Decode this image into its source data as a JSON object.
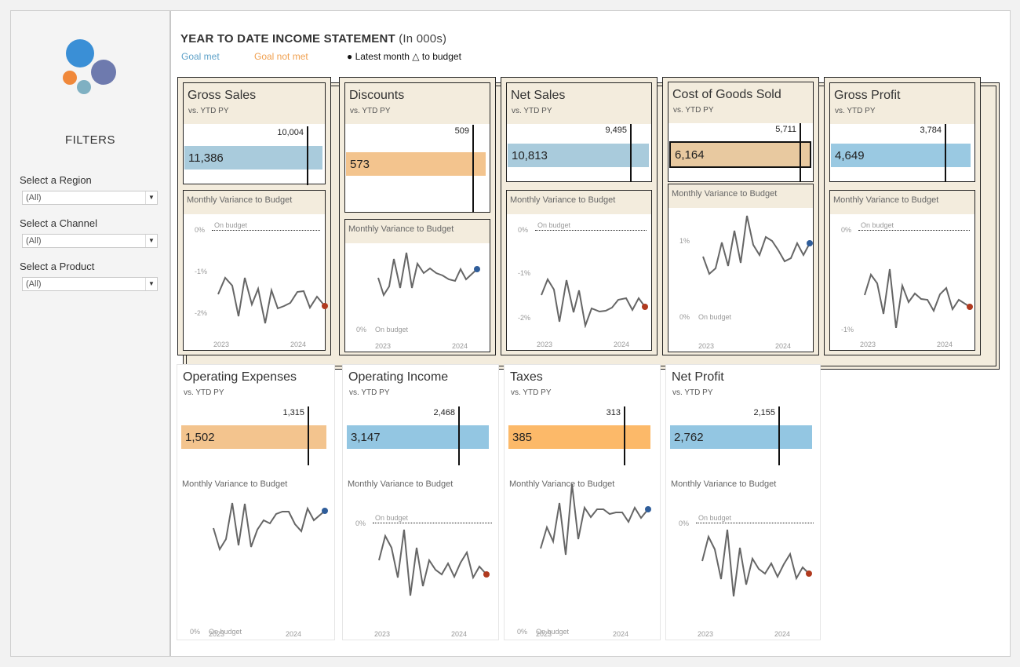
{
  "sidebar": {
    "filters_title": "FILTERS",
    "filters": [
      {
        "label": "Select a Region",
        "value": "(All)"
      },
      {
        "label": "Select a Channel",
        "value": "(All)"
      },
      {
        "label": "Select a Product",
        "value": "(All)"
      }
    ],
    "logo_colors": [
      "#3a8fd6",
      "#6e7aae",
      "#f0883a",
      "#7fb0c2"
    ]
  },
  "header": {
    "title": "YEAR TO DATE INCOME STATEMENT",
    "subtitle": "(In 000s)",
    "legend_goal_met": "Goal met",
    "legend_goal_not_met": "Goal not met",
    "legend_latest": "● Latest month △ to budget",
    "colors": {
      "goal_met": "#5fa2c9",
      "goal_not_met": "#f0a050"
    }
  },
  "common": {
    "vs_label": "vs. YTD PY",
    "trend_title": "Monthly Variance to Budget",
    "on_budget": "On budget",
    "year_start": "2023",
    "year_end": "2024"
  },
  "cards": [
    {
      "title": "Gross Sales",
      "value": "11,386",
      "ref": "10,004",
      "bar_color": "#a9cbdc",
      "axis": [
        "0%",
        "-1%",
        "-2%"
      ],
      "dot_color": "#b03a1f"
    },
    {
      "title": "Discounts",
      "value": "573",
      "ref": "509",
      "bar_color": "#f3c48e",
      "axis": [
        "0%"
      ],
      "dot_color": "#2f5d9a"
    },
    {
      "title": "Net Sales",
      "value": "10,813",
      "ref": "9,495",
      "bar_color": "#a9cbdc",
      "axis": [
        "0%",
        "-1%",
        "-2%"
      ],
      "dot_color": "#b03a1f"
    },
    {
      "title": "Cost of Goods Sold",
      "value": "6,164",
      "ref": "5,711",
      "bar_color": "#e8c9a0",
      "axis": [
        "1%",
        "0%"
      ],
      "dot_color": "#2f5d9a"
    },
    {
      "title": "Gross Profit",
      "value": "4,649",
      "ref": "3,784",
      "bar_color": "#9ac9e2",
      "axis": [
        "0%",
        "-1%"
      ],
      "dot_color": "#b03a1f"
    },
    {
      "title": "Operating Expenses",
      "value": "1,502",
      "ref": "1,315",
      "bar_color": "#f3c48e",
      "axis": [
        "0%"
      ],
      "dot_color": "#2f5d9a"
    },
    {
      "title": "Operating Income",
      "value": "3,147",
      "ref": "2,468",
      "bar_color": "#93c6e2",
      "axis": [
        "0%"
      ],
      "dot_color": "#b03a1f"
    },
    {
      "title": "Taxes",
      "value": "385",
      "ref": "313",
      "bar_color": "#fcb969",
      "axis": [
        "0%"
      ],
      "dot_color": "#2f5d9a"
    },
    {
      "title": "Net Profit",
      "value": "2,762",
      "ref": "2,155",
      "bar_color": "#93c6e2",
      "axis": [
        "0%"
      ],
      "dot_color": "#b03a1f"
    }
  ]
}
